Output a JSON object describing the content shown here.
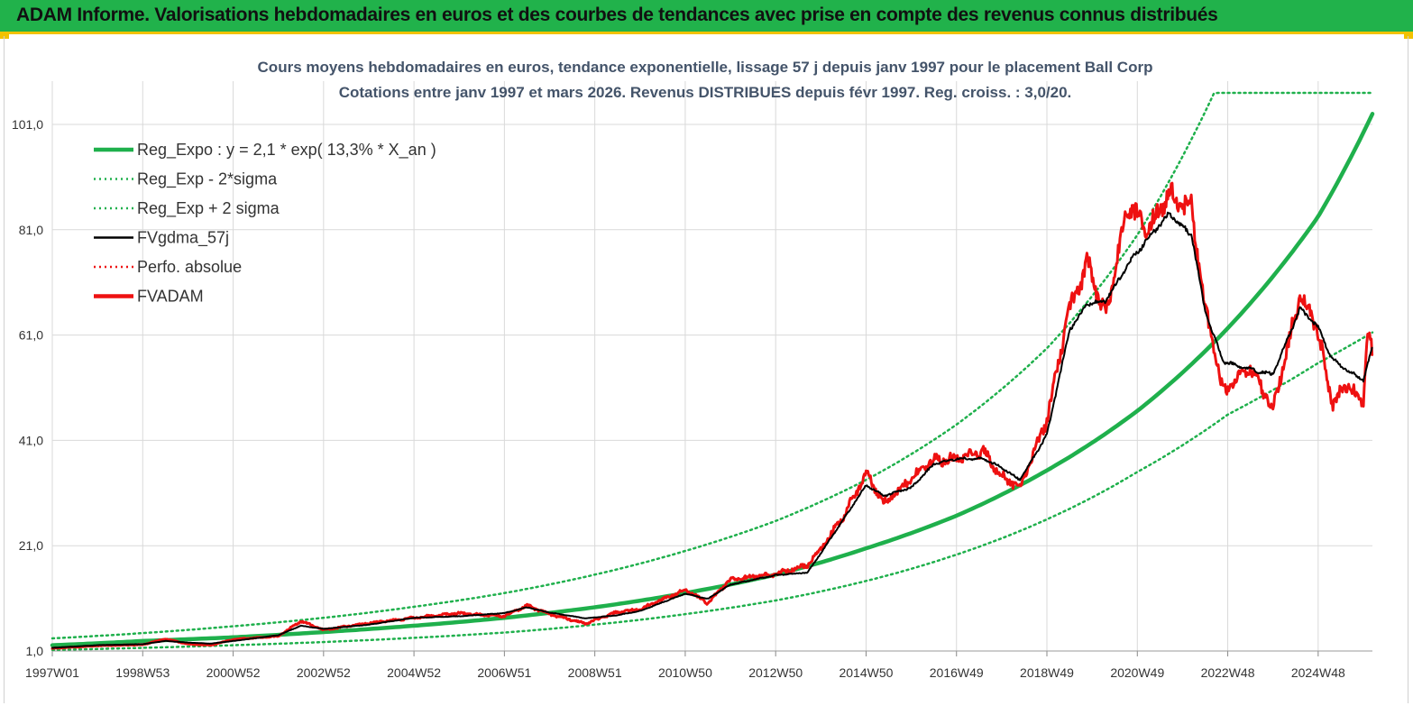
{
  "banner": {
    "title": "ADAM Informe. Valorisations hebdomadaires en euros et des courbes de tendances avec prise en compte des revenus connus distribués"
  },
  "colors": {
    "banner_bg": "#21b24b",
    "banner_border": "#f2c200",
    "reg_green": "#1fb04c",
    "fvadam_red": "#ee1111",
    "fvgdma_black": "#000000",
    "title_text": "#44546a",
    "grid": "#d9d9d9"
  },
  "chart_data": {
    "type": "line",
    "title": "Cours moyens hebdomadaires en euros, tendance exponentielle, lissage 57 j depuis janv 1997 pour le placement Ball Corp",
    "subtitle": "Cotations entre janv 1997 et mars 2026. Revenus DISTRIBUES depuis févr 1997. Reg. croiss. : 3,0/20.",
    "xlabel": "",
    "ylabel": "",
    "x_range_years": [
      1997.0,
      2026.2
    ],
    "ylim": [
      1.0,
      110.0
    ],
    "y_ticks": [
      "1,0",
      "21,0",
      "41,0",
      "61,0",
      "81,0",
      "101,0"
    ],
    "y_tick_values": [
      1,
      21,
      41,
      61,
      81,
      101
    ],
    "x_ticks": [
      {
        "label": "1997W01",
        "year": 1997.0
      },
      {
        "label": "1998W53",
        "year": 1999.0
      },
      {
        "label": "2000W52",
        "year": 2001.0
      },
      {
        "label": "2002W52",
        "year": 2003.0
      },
      {
        "label": "2004W52",
        "year": 2005.0
      },
      {
        "label": "2006W51",
        "year": 2007.0
      },
      {
        "label": "2008W51",
        "year": 2009.0
      },
      {
        "label": "2010W50",
        "year": 2011.0
      },
      {
        "label": "2012W50",
        "year": 2013.0
      },
      {
        "label": "2014W50",
        "year": 2015.0
      },
      {
        "label": "2016W49",
        "year": 2017.0
      },
      {
        "label": "2018W49",
        "year": 2019.0
      },
      {
        "label": "2020W49",
        "year": 2021.0
      },
      {
        "label": "2022W48",
        "year": 2023.0
      },
      {
        "label": "2024W48",
        "year": 2025.0
      }
    ],
    "legend_position": "top-left",
    "legend": [
      {
        "name": "Reg_Expo : y = 2,1 * exp( 13,3% *  X_an )",
        "style": "solid-thick",
        "color": "#1fb04c"
      },
      {
        "name": "Reg_Exp - 2*sigma",
        "style": "dotted",
        "color": "#1fb04c"
      },
      {
        "name": "Reg_Exp + 2 sigma",
        "style": "dotted",
        "color": "#1fb04c"
      },
      {
        "name": "FVgdma_57j",
        "style": "solid",
        "color": "#000000"
      },
      {
        "name": "Perfo. absolue",
        "style": "dotted",
        "color": "#ee1111"
      },
      {
        "name": "FVADAM",
        "style": "solid-thick",
        "color": "#ee1111"
      }
    ],
    "series": [
      {
        "name": "Reg_Expo",
        "points": [
          [
            1997.0,
            2.1
          ],
          [
            1999.0,
            2.9
          ],
          [
            2001.0,
            3.6
          ],
          [
            2003.0,
            4.6
          ],
          [
            2005.0,
            5.8
          ],
          [
            2007.0,
            7.3
          ],
          [
            2009.0,
            9.3
          ],
          [
            2011.0,
            12.0
          ],
          [
            2013.0,
            15.5
          ],
          [
            2015.0,
            20.5
          ],
          [
            2017.0,
            26.7
          ],
          [
            2019.0,
            35.3
          ],
          [
            2021.0,
            46.6
          ],
          [
            2023.0,
            62.3
          ],
          [
            2025.0,
            83.5
          ],
          [
            2026.2,
            103.0
          ]
        ]
      },
      {
        "name": "Reg_Exp - 2*sigma",
        "points": [
          [
            1997.0,
            1.2
          ],
          [
            1999.0,
            1.6
          ],
          [
            2001.0,
            2.1
          ],
          [
            2003.0,
            2.7
          ],
          [
            2005.0,
            3.5
          ],
          [
            2007.0,
            4.5
          ],
          [
            2009.0,
            6.0
          ],
          [
            2011.0,
            8.0
          ],
          [
            2013.0,
            10.6
          ],
          [
            2015.0,
            14.3
          ],
          [
            2017.0,
            19.3
          ],
          [
            2019.0,
            26.0
          ],
          [
            2021.0,
            35.0
          ],
          [
            2023.0,
            45.9
          ],
          [
            2025.0,
            55.7
          ],
          [
            2026.2,
            61.5
          ]
        ]
      },
      {
        "name": "Reg_Exp + 2 sigma",
        "points": [
          [
            1997.0,
            3.4
          ],
          [
            1999.0,
            4.4
          ],
          [
            2001.0,
            5.7
          ],
          [
            2003.0,
            7.3
          ],
          [
            2005.0,
            9.4
          ],
          [
            2007.0,
            12.0
          ],
          [
            2009.0,
            15.5
          ],
          [
            2011.0,
            20.0
          ],
          [
            2013.0,
            25.7
          ],
          [
            2015.0,
            33.5
          ],
          [
            2017.0,
            44.0
          ],
          [
            2019.0,
            58.5
          ],
          [
            2021.0,
            80.0
          ],
          [
            2022.7,
            107.0
          ],
          [
            2026.2,
            107.0
          ]
        ]
      },
      {
        "name": "FVgdma_57j",
        "points": [
          [
            1997.0,
            1.6
          ],
          [
            1998.0,
            2.1
          ],
          [
            1999.0,
            2.3
          ],
          [
            1999.5,
            2.9
          ],
          [
            2000.0,
            2.6
          ],
          [
            2000.5,
            2.4
          ],
          [
            2001.0,
            2.9
          ],
          [
            2002.0,
            4.0
          ],
          [
            2002.5,
            5.8
          ],
          [
            2003.0,
            5.2
          ],
          [
            2004.0,
            6.0
          ],
          [
            2005.0,
            7.3
          ],
          [
            2006.0,
            7.6
          ],
          [
            2007.0,
            8.2
          ],
          [
            2007.5,
            9.3
          ],
          [
            2008.0,
            8.3
          ],
          [
            2008.8,
            7.2
          ],
          [
            2009.5,
            7.8
          ],
          [
            2010.0,
            8.6
          ],
          [
            2011.0,
            11.9
          ],
          [
            2011.5,
            10.9
          ],
          [
            2012.0,
            13.6
          ],
          [
            2013.0,
            15.4
          ],
          [
            2013.7,
            15.9
          ],
          [
            2014.0,
            19.6
          ],
          [
            2014.5,
            26.0
          ],
          [
            2015.0,
            32.5
          ],
          [
            2015.4,
            30.5
          ],
          [
            2016.0,
            32.0
          ],
          [
            2016.5,
            36.5
          ],
          [
            2017.0,
            37.5
          ],
          [
            2017.6,
            37.5
          ],
          [
            2018.0,
            35.8
          ],
          [
            2018.4,
            33.5
          ],
          [
            2019.0,
            42.0
          ],
          [
            2019.5,
            62.0
          ],
          [
            2019.9,
            67.0
          ],
          [
            2020.3,
            67.5
          ],
          [
            2020.8,
            74.5
          ],
          [
            2021.2,
            79.0
          ],
          [
            2021.7,
            84.0
          ],
          [
            2022.2,
            80.0
          ],
          [
            2022.5,
            65.5
          ],
          [
            2022.9,
            56.0
          ],
          [
            2023.5,
            54.5
          ],
          [
            2024.0,
            53.5
          ],
          [
            2024.6,
            66.0
          ],
          [
            2025.0,
            62.5
          ],
          [
            2025.3,
            56.5
          ],
          [
            2025.7,
            54.0
          ],
          [
            2026.0,
            52.5
          ],
          [
            2026.2,
            58.5
          ]
        ]
      },
      {
        "name": "FVADAM",
        "points": [
          [
            1997.0,
            1.5
          ],
          [
            1998.0,
            2.0
          ],
          [
            1999.0,
            2.2
          ],
          [
            1999.5,
            3.3
          ],
          [
            2000.0,
            2.3
          ],
          [
            2000.5,
            2.1
          ],
          [
            2001.0,
            3.2
          ],
          [
            2002.0,
            3.8
          ],
          [
            2002.5,
            6.7
          ],
          [
            2003.0,
            5.0
          ],
          [
            2004.0,
            6.3
          ],
          [
            2005.0,
            7.3
          ],
          [
            2006.0,
            8.2
          ],
          [
            2007.0,
            7.6
          ],
          [
            2007.5,
            9.6
          ],
          [
            2008.0,
            8.0
          ],
          [
            2008.8,
            6.2
          ],
          [
            2009.5,
            8.4
          ],
          [
            2010.0,
            8.9
          ],
          [
            2011.0,
            12.7
          ],
          [
            2011.5,
            10.1
          ],
          [
            2012.0,
            14.6
          ],
          [
            2013.0,
            15.6
          ],
          [
            2013.7,
            17.3
          ],
          [
            2014.0,
            20.4
          ],
          [
            2014.5,
            26.5
          ],
          [
            2015.0,
            34.9
          ],
          [
            2015.4,
            29.0
          ],
          [
            2016.0,
            33.8
          ],
          [
            2016.5,
            37.2
          ],
          [
            2017.0,
            37.5
          ],
          [
            2017.6,
            38.9
          ],
          [
            2018.0,
            34.2
          ],
          [
            2018.4,
            32.0
          ],
          [
            2019.0,
            45.0
          ],
          [
            2019.5,
            66.0
          ],
          [
            2019.9,
            74.5
          ],
          [
            2020.3,
            64.0
          ],
          [
            2020.8,
            86.5
          ],
          [
            2021.2,
            80.0
          ],
          [
            2021.7,
            88.0
          ],
          [
            2022.2,
            85.0
          ],
          [
            2022.5,
            66.0
          ],
          [
            2022.9,
            50.0
          ],
          [
            2023.5,
            55.0
          ],
          [
            2024.0,
            47.0
          ],
          [
            2024.6,
            68.5
          ],
          [
            2025.0,
            62.0
          ],
          [
            2025.3,
            48.0
          ],
          [
            2025.7,
            52.0
          ],
          [
            2026.0,
            47.5
          ],
          [
            2026.1,
            63.5
          ],
          [
            2026.2,
            57.5
          ]
        ]
      }
    ]
  }
}
